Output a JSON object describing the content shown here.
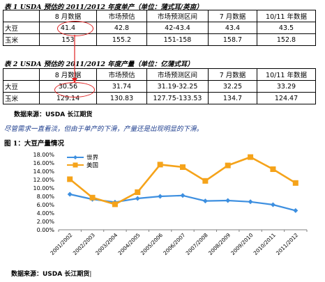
{
  "table1": {
    "caption": "表 1   USDA 预估的 2011/2012 年度单产（单位：蒲式耳/英亩）",
    "headers": [
      "",
      "8 月数据",
      "市场预估",
      "市场预测区间",
      "7 月数据",
      "10/11 年数据"
    ],
    "rows": [
      {
        "label": "大豆",
        "cells": [
          "41.4",
          "42.8",
          "42-43.4",
          "43.4",
          "43.5"
        ]
      },
      {
        "label": "玉米",
        "cells": [
          "153",
          "155.2",
          "151-158",
          "158.7",
          "152.8"
        ]
      }
    ]
  },
  "table2": {
    "caption": "表 2   USDA 预估的 2011/2012 年度产量（单位：亿蒲式耳）",
    "headers": [
      "",
      "8 月数据",
      "市场预估",
      "市场预测区间",
      "7 月数据",
      "10/11 年数据"
    ],
    "rows": [
      {
        "label": "大豆",
        "cells": [
          "30.56",
          "31.74",
          "31.19-32.25",
          "32.25",
          "33.29"
        ]
      },
      {
        "label": "玉米",
        "cells": [
          "129.14",
          "130.83",
          "127.75-133.53",
          "134.7",
          "124.47"
        ]
      }
    ]
  },
  "source1": "数据来源：USDA  长江期货",
  "paragraph": "尽管需求一直看淡，但由于单产的下滑，产量还是出现明显的下滑。",
  "figure_caption": "图 1：大豆产量情况",
  "source2": "数据来源：USDA 长江期货",
  "colors": {
    "world": "#3d8fe0",
    "usa": "#f5a31a",
    "highlight": "#e02020"
  },
  "chart_data": {
    "type": "line",
    "categories": [
      "2001/2002",
      "2002/2003",
      "2003/2004",
      "2004/2005",
      "2005/2006",
      "2006/2007",
      "2007/2008",
      "2008/2009",
      "2009/2010",
      "2010/2011",
      "2011/2012"
    ],
    "series": [
      {
        "name": "世界",
        "values": [
          8.5,
          7.3,
          6.6,
          7.5,
          8.0,
          8.2,
          6.9,
          7.0,
          6.7,
          6.0,
          4.6
        ]
      },
      {
        "name": "美国",
        "values": [
          12.1,
          7.7,
          6.1,
          9.0,
          15.6,
          15.0,
          11.7,
          15.4,
          17.4,
          14.5,
          11.2
        ]
      }
    ],
    "yticks": [
      "0.00%",
      "2.00%",
      "4.00%",
      "6.00%",
      "8.00%",
      "10.00%",
      "12.00%",
      "14.00%",
      "16.00%",
      "18.00%"
    ],
    "ylim": [
      0,
      18
    ],
    "legend_position": "top-left",
    "grid": false
  }
}
